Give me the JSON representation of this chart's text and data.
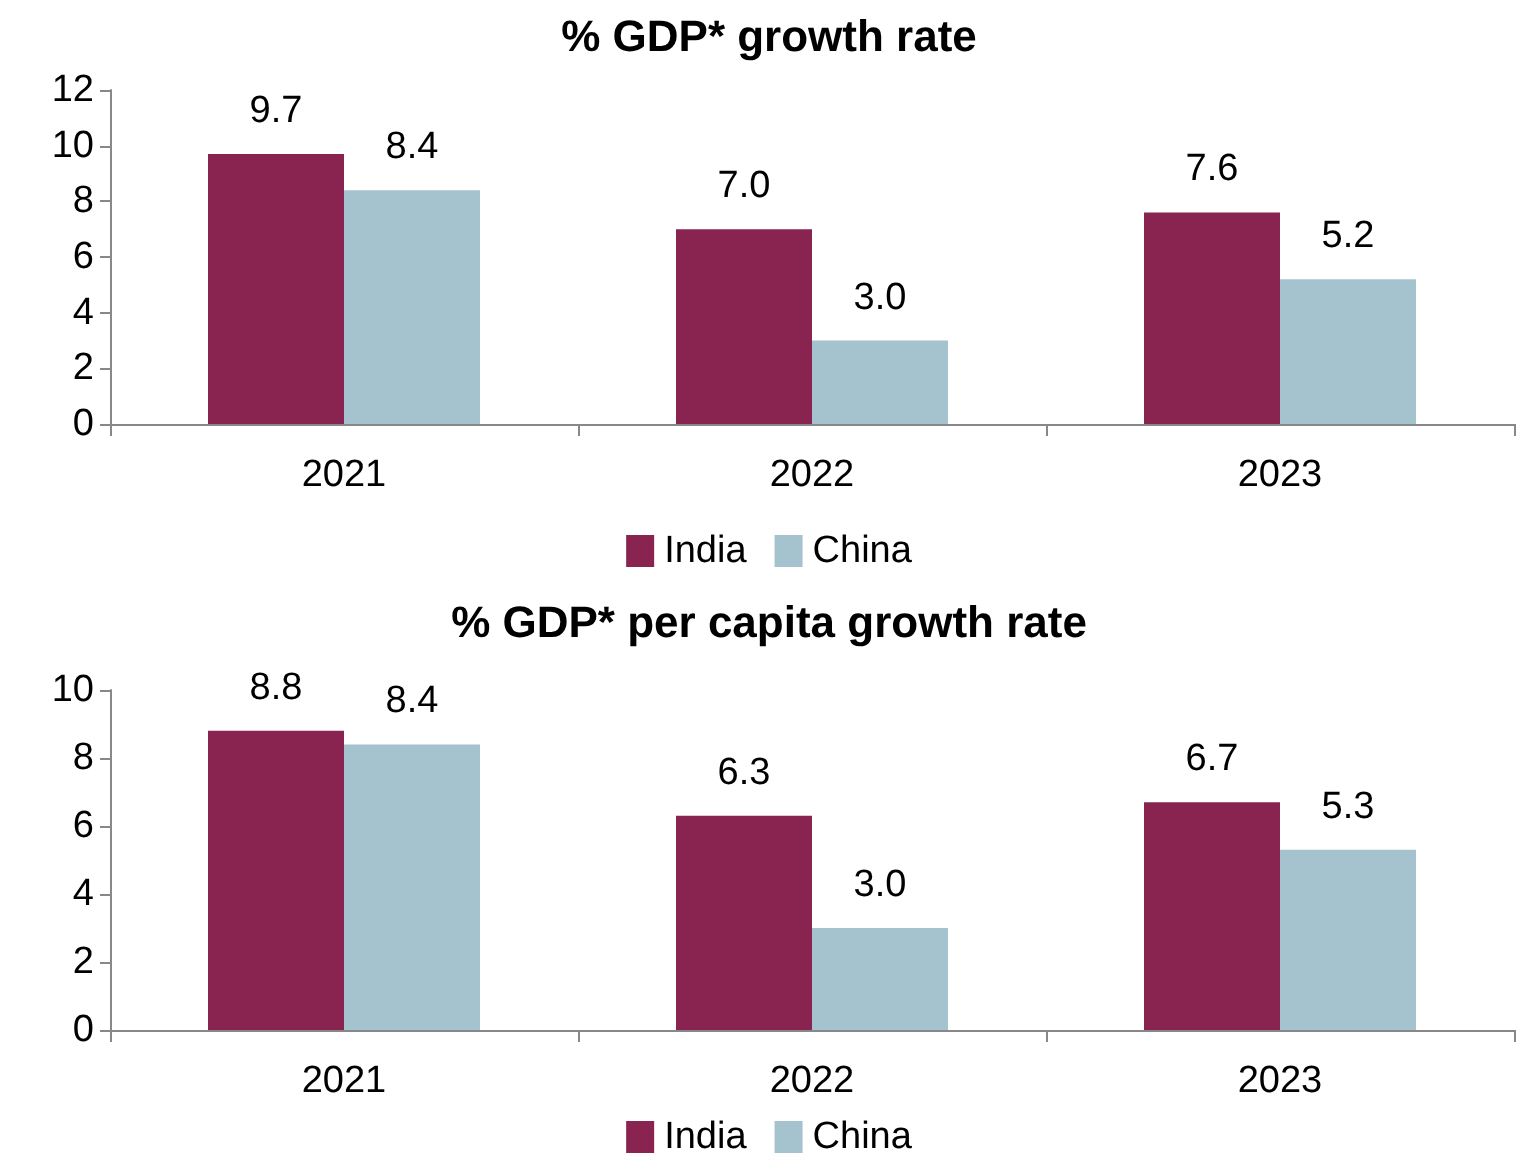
{
  "chart_data": [
    {
      "type": "bar",
      "title": "% GDP* growth rate",
      "categories": [
        "2021",
        "2022",
        "2023"
      ],
      "series": [
        {
          "name": "India",
          "color": "#88244f",
          "values": [
            9.7,
            7.0,
            7.6
          ],
          "value_labels": [
            "9.7",
            "7.0",
            "7.6"
          ]
        },
        {
          "name": "China",
          "color": "#a4c3cf",
          "values": [
            8.4,
            3.0,
            5.2
          ],
          "value_labels": [
            "8.4",
            "3.0",
            "5.2"
          ]
        }
      ],
      "ylim": [
        0,
        12
      ],
      "yticks": [
        0,
        2,
        4,
        6,
        8,
        10,
        12
      ],
      "grid": false,
      "legend": "bottom"
    },
    {
      "type": "bar",
      "title": "% GDP* per capita growth rate",
      "categories": [
        "2021",
        "2022",
        "2023"
      ],
      "series": [
        {
          "name": "India",
          "color": "#88244f",
          "values": [
            8.8,
            6.3,
            6.7
          ],
          "value_labels": [
            "8.8",
            "6.3",
            "6.7"
          ]
        },
        {
          "name": "China",
          "color": "#a4c3cf",
          "values": [
            8.4,
            3.0,
            5.3
          ],
          "value_labels": [
            "8.4",
            "3.0",
            "5.3"
          ]
        }
      ],
      "ylim": [
        0,
        10
      ],
      "yticks": [
        0,
        2,
        4,
        6,
        8,
        10
      ],
      "grid": false,
      "legend": "bottom"
    }
  ]
}
